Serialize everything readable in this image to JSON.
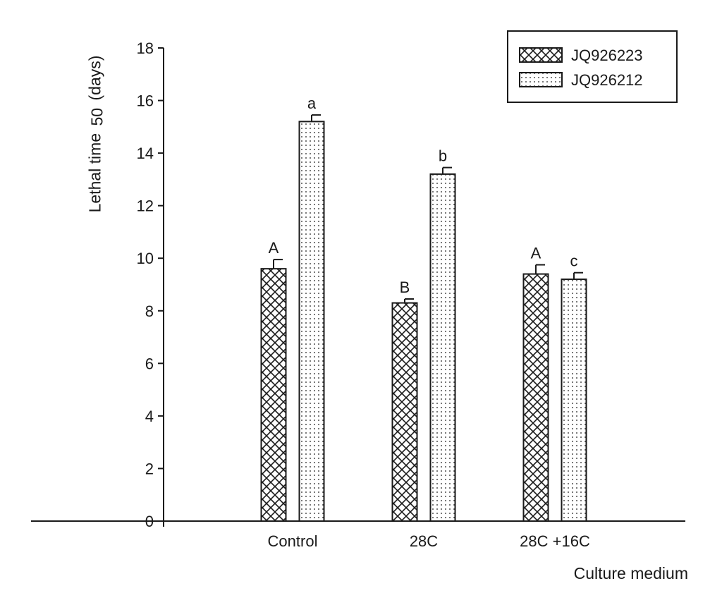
{
  "chart_data": {
    "type": "bar",
    "title": "",
    "xlabel": "Culture medium",
    "ylabel": {
      "main": "Lethal time",
      "subscript": "50",
      "unit": "(days)"
    },
    "ylim": [
      0,
      18
    ],
    "yticks": [
      "0",
      "2",
      "4",
      "6",
      "8",
      "10",
      "12",
      "14",
      "16",
      "18"
    ],
    "categories": [
      "Control",
      "28C",
      "28C +16C"
    ],
    "series": [
      {
        "name": "JQ926223",
        "pattern": "crosshatch",
        "values": [
          9.6,
          8.3,
          9.4
        ],
        "errors": [
          0.35,
          0.15,
          0.35
        ],
        "letters": [
          "A",
          "B",
          "A"
        ]
      },
      {
        "name": "JQ926212",
        "pattern": "dots",
        "values": [
          15.2,
          13.2,
          9.2
        ],
        "errors": [
          0.25,
          0.25,
          0.25
        ],
        "letters": [
          "a",
          "b",
          "c"
        ]
      }
    ],
    "grid": false,
    "legend_position": "top-right"
  }
}
